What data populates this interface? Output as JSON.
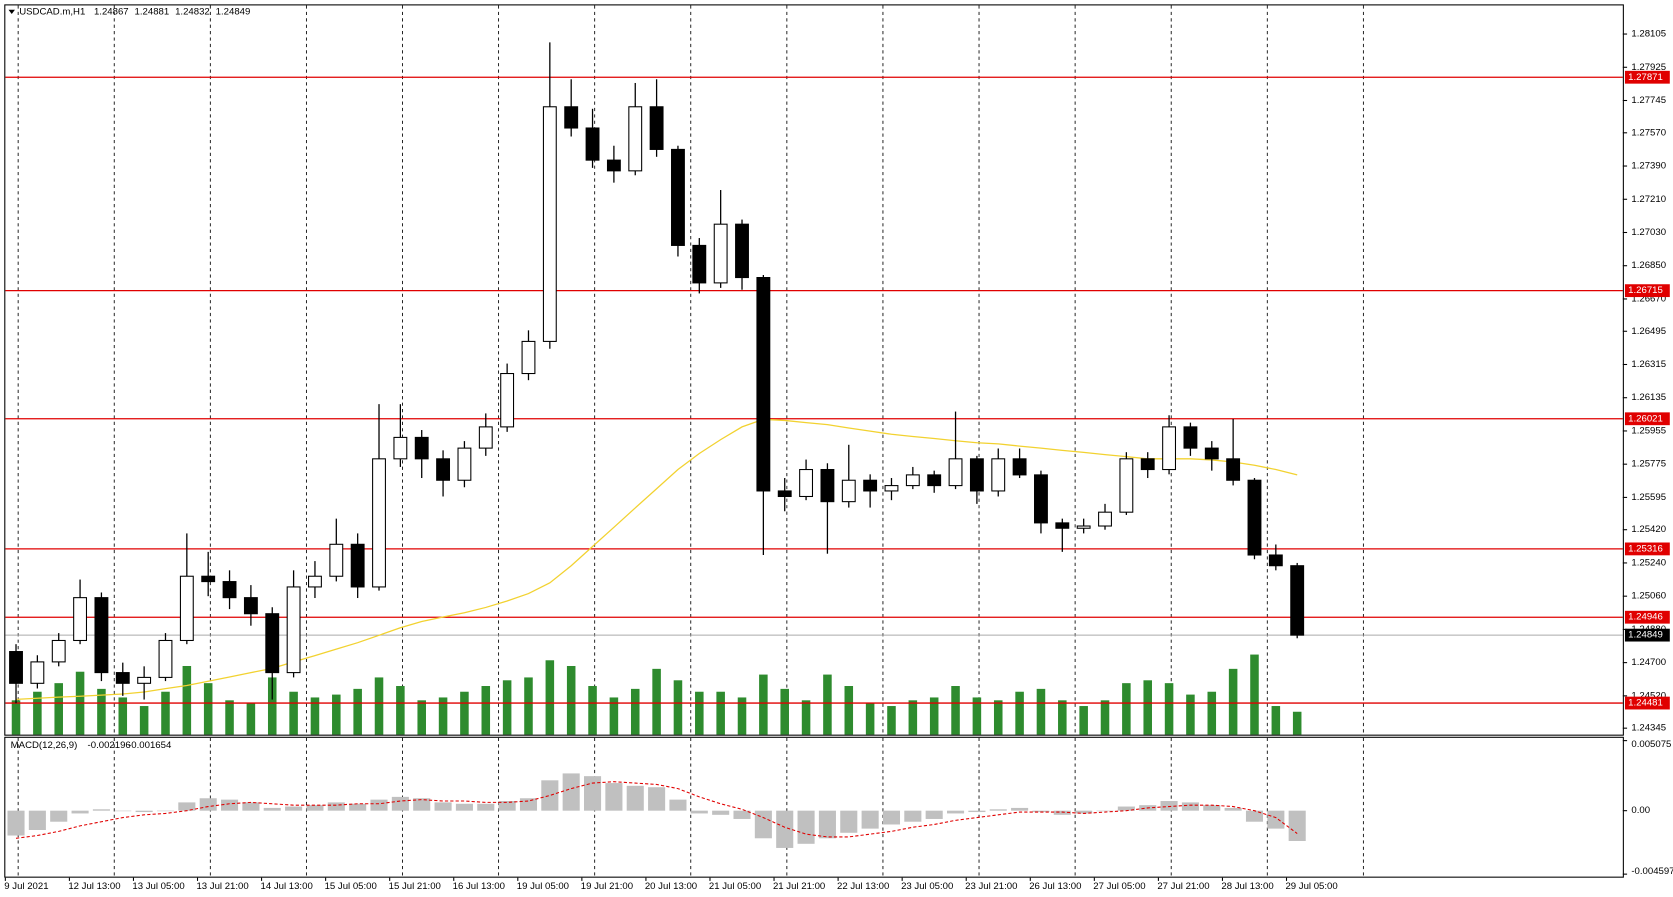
{
  "chart_data": [
    {
      "type": "candlestick",
      "title": "USDCAD.m,H1",
      "header_values": [
        1.24867,
        1.24881,
        1.24832,
        1.24849
      ],
      "open": [
        1.2476,
        1.24588,
        1.24704,
        1.2482,
        1.25052,
        1.24646,
        1.24588,
        1.2462,
        1.2482,
        1.25168,
        1.25139,
        1.25052,
        1.24965,
        1.24646,
        1.2511,
        1.25168,
        1.25341,
        1.2511,
        1.25804,
        1.2592,
        1.25804,
        1.25688,
        1.25862,
        1.25977,
        1.26266,
        1.2644,
        1.27711,
        1.27596,
        1.27422,
        1.27364,
        1.27711,
        1.2748,
        1.2696,
        1.26757,
        1.27075,
        1.26786,
        1.2563,
        1.256,
        1.25746,
        1.25572,
        1.25688,
        1.2563,
        1.25659,
        1.25717,
        1.25659,
        1.25804,
        1.2563,
        1.25804,
        1.25717,
        1.25457,
        1.25428,
        1.2544,
        1.25515,
        1.25804,
        1.25746,
        1.25977,
        1.25862,
        1.25804,
        1.25688,
        1.25283,
        1.25225
      ],
      "high": [
        1.248,
        1.2474,
        1.2486,
        1.2515,
        1.2508,
        1.247,
        1.2468,
        1.2486,
        1.254,
        1.253,
        1.252,
        1.2512,
        1.25,
        1.252,
        1.2525,
        1.2548,
        1.254,
        1.261,
        1.261,
        1.2596,
        1.2585,
        1.259,
        1.2605,
        1.2632,
        1.265,
        1.2806,
        1.2786,
        1.277,
        1.275,
        1.2784,
        1.2786,
        1.275,
        1.27,
        1.2726,
        1.271,
        1.268,
        1.257,
        1.258,
        1.2578,
        1.2588,
        1.2572,
        1.257,
        1.2576,
        1.2574,
        1.2606,
        1.2582,
        1.2586,
        1.2586,
        1.2574,
        1.2548,
        1.2548,
        1.2556,
        1.2584,
        1.2584,
        1.2604,
        1.26,
        1.259,
        1.2602,
        1.257,
        1.2534,
        1.2524
      ],
      "low": [
        1.2448,
        1.2456,
        1.2468,
        1.248,
        1.246,
        1.2452,
        1.245,
        1.246,
        1.248,
        1.2506,
        1.2499,
        1.249,
        1.245,
        1.2462,
        1.2505,
        1.2514,
        1.2505,
        1.2509,
        1.2576,
        1.257,
        1.256,
        1.2565,
        1.2582,
        1.2595,
        1.2623,
        1.264,
        1.2755,
        1.2738,
        1.273,
        1.2734,
        1.2744,
        1.269,
        1.267,
        1.2673,
        1.2672,
        1.25283,
        1.2552,
        1.2558,
        1.2529,
        1.2554,
        1.2554,
        1.2558,
        1.2564,
        1.2562,
        1.2564,
        1.2556,
        1.256,
        1.257,
        1.254,
        1.253,
        1.254,
        1.2542,
        1.255,
        1.257,
        1.2572,
        1.2582,
        1.2574,
        1.2566,
        1.2526,
        1.252,
        1.24832
      ],
      "close": [
        1.24588,
        1.24704,
        1.2482,
        1.25052,
        1.24646,
        1.24588,
        1.2462,
        1.2482,
        1.25168,
        1.25139,
        1.25052,
        1.24965,
        1.24646,
        1.2511,
        1.25168,
        1.25341,
        1.2511,
        1.25804,
        1.2592,
        1.25804,
        1.25688,
        1.25862,
        1.25977,
        1.26266,
        1.2644,
        1.27711,
        1.27596,
        1.27422,
        1.27364,
        1.27711,
        1.2748,
        1.2696,
        1.26757,
        1.27075,
        1.26786,
        1.2563,
        1.256,
        1.25746,
        1.25572,
        1.25688,
        1.2563,
        1.25659,
        1.25717,
        1.25659,
        1.25804,
        1.2563,
        1.25804,
        1.25717,
        1.25457,
        1.25428,
        1.2544,
        1.25515,
        1.25804,
        1.25746,
        1.25977,
        1.25862,
        1.25804,
        1.25688,
        1.25283,
        1.25225,
        1.24849
      ],
      "volume": [
        1200,
        1500,
        1800,
        2200,
        1600,
        1300,
        1000,
        1500,
        2400,
        1800,
        1200,
        1100,
        2000,
        1500,
        1300,
        1400,
        1600,
        2000,
        1700,
        1200,
        1300,
        1500,
        1700,
        1900,
        2000,
        2600,
        2400,
        1700,
        1300,
        1600,
        2300,
        1900,
        1500,
        1500,
        1300,
        2100,
        1600,
        1200,
        2100,
        1700,
        1100,
        1000,
        1200,
        1300,
        1700,
        1300,
        1200,
        1500,
        1600,
        1200,
        1000,
        1200,
        1800,
        1900,
        1800,
        1400,
        1500,
        2300,
        2800,
        1000,
        800
      ],
      "volume_color": "#2e8b2e",
      "ma": {
        "color": "#f2d230",
        "values": [
          1.24501,
          1.24507,
          1.24513,
          1.24518,
          1.24524,
          1.2453,
          1.24541,
          1.24559,
          1.24576,
          1.24599,
          1.24622,
          1.24646,
          1.24669,
          1.24704,
          1.24738,
          1.24773,
          1.24808,
          1.24848,
          1.24889,
          1.24923,
          1.24947,
          1.2497,
          1.24999,
          1.25034,
          1.25074,
          1.25132,
          1.25225,
          1.25329,
          1.25433,
          1.25538,
          1.25642,
          1.25746,
          1.25833,
          1.25908,
          1.25977,
          1.26018,
          1.26012,
          1.26,
          1.25989,
          1.25971,
          1.25954,
          1.25937,
          1.25925,
          1.25914,
          1.25902,
          1.25891,
          1.25885,
          1.25873,
          1.25862,
          1.2585,
          1.25839,
          1.25827,
          1.25816,
          1.25804,
          1.25804,
          1.25804,
          1.25798,
          1.25787,
          1.25769,
          1.25746,
          1.25717
        ]
      },
      "levels": {
        "color": "#e00000",
        "values": [
          1.27871,
          1.26715,
          1.26021,
          1.25316,
          1.24946,
          1.24481
        ]
      },
      "colors": {
        "up": "#ffffff",
        "down": "#000000"
      },
      "ylim": [
        1.2431,
        1.2826
      ],
      "yticks": [
        1.28105,
        1.27925,
        1.27745,
        {
          "value": 1.2757,
          "label": "1.27570"
        },
        {
          "value": 1.2739,
          "label": "1.27390"
        },
        {
          "value": 1.2721,
          "label": "1.27210"
        },
        {
          "value": 1.2703,
          "label": "1.27030"
        },
        {
          "value": 1.2685,
          "label": "1.26850"
        },
        {
          "value": 1.2667,
          "label": "1.26670"
        },
        1.26495,
        1.26315,
        1.26135,
        1.25955,
        1.25775,
        1.25595,
        {
          "value": 1.2542,
          "label": "1.25420"
        },
        {
          "value": 1.2524,
          "label": "1.25240"
        },
        {
          "value": 1.2506,
          "label": "1.25060"
        },
        {
          "value": 1.2488,
          "label": "1.24880"
        },
        {
          "value": 1.247,
          "label": "1.24700"
        },
        {
          "value": 1.2452,
          "label": "1.24520"
        },
        1.24345
      ]
    },
    {
      "type": "macd",
      "title": "MACD(12,26,9)",
      "macd": {
        "color": "#c0c0c0",
        "values": [
          -0.0018,
          -0.0014,
          -0.0008,
          -0.0002,
          0.0001,
          0.0,
          -0.0001,
          0.0,
          0.0006,
          0.0009,
          0.0008,
          0.0006,
          0.0002,
          0.0003,
          0.0004,
          0.0006,
          0.0005,
          0.0008,
          0.001,
          0.0009,
          0.0006,
          0.0005,
          0.0005,
          0.0007,
          0.0009,
          0.0022,
          0.0027,
          0.0025,
          0.002,
          0.0018,
          0.0017,
          0.0008,
          -0.0002,
          -0.0003,
          -0.0006,
          -0.002,
          -0.0027,
          -0.0024,
          -0.002,
          -0.0016,
          -0.0013,
          -0.001,
          -0.0008,
          -0.0006,
          -0.0002,
          -0.0001,
          0.0001,
          0.0002,
          -0.0001,
          -0.0003,
          -0.0002,
          0.0,
          0.0003,
          0.0004,
          0.0007,
          0.0006,
          0.0004,
          0.0002,
          -0.0008,
          -0.0013,
          -0.002196
        ]
      },
      "signal": {
        "color": "#e00000",
        "values": [
          -0.002,
          -0.0018,
          -0.0015,
          -0.0011,
          -0.0008,
          -0.0005,
          -0.0003,
          -0.0002,
          0.0,
          0.0003,
          0.0005,
          0.0006,
          0.0005,
          0.0004,
          0.0004,
          0.0004,
          0.0005,
          0.0005,
          0.0007,
          0.0008,
          0.0007,
          0.0007,
          0.0006,
          0.0006,
          0.0007,
          0.0011,
          0.0016,
          0.002,
          0.0021,
          0.002,
          0.0019,
          0.0016,
          0.001,
          0.0005,
          0.0001,
          -0.0005,
          -0.0012,
          -0.0017,
          -0.0019,
          -0.0019,
          -0.0017,
          -0.0015,
          -0.0012,
          -0.001,
          -0.0007,
          -0.0005,
          -0.0003,
          -0.0001,
          -0.0001,
          -0.0001,
          -0.0002,
          -0.0001,
          0.0,
          0.0002,
          0.0003,
          0.0004,
          0.0004,
          0.0003,
          0.0,
          -0.0005,
          -0.001654
        ]
      },
      "ylim": [
        -0.0047,
        0.0052
      ],
      "yticks": [
        0.005075,
        {
          "value": 0,
          "label": "0.00"
        },
        -0.004597
      ],
      "x_labels": [
        "9 Jul 2021",
        "12 Jul 13:00",
        "13 Jul 05:00",
        "13 Jul 21:00",
        "14 Jul 13:00",
        "15 Jul 05:00",
        "15 Jul 21:00",
        "16 Jul 13:00",
        "19 Jul 05:00",
        "19 Jul 21:00",
        "20 Jul 13:00",
        "21 Jul 05:00",
        "21 Jul 21:00",
        "22 Jul 13:00",
        "23 Jul 05:00",
        "23 Jul 21:00",
        "26 Jul 13:00",
        "27 Jul 05:00",
        "27 Jul 21:00",
        "28 Jul 13:00",
        "29 Jul 05:00"
      ]
    }
  ]
}
